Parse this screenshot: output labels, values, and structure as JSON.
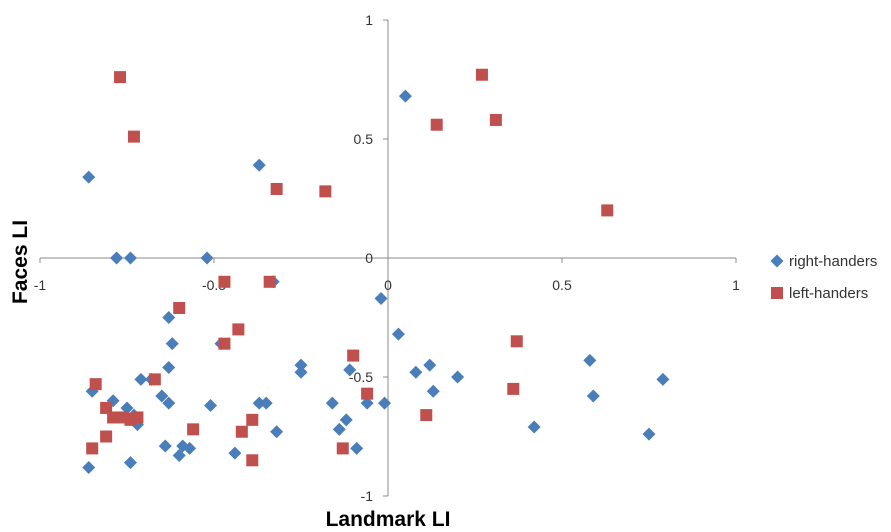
{
  "chart_data": {
    "type": "scatter",
    "xlabel": "Landmark LI",
    "ylabel": "Faces LI",
    "xlim": [
      -1,
      1
    ],
    "ylim": [
      -1,
      1
    ],
    "x_ticks": [
      {
        "value": -1,
        "label": "-1"
      },
      {
        "value": -0.5,
        "label": "-0.5"
      },
      {
        "value": 0,
        "label": "0"
      },
      {
        "value": 0.5,
        "label": "0.5"
      },
      {
        "value": 1,
        "label": "1"
      }
    ],
    "y_ticks": [
      {
        "value": 1,
        "label": "1"
      },
      {
        "value": 0.5,
        "label": "0.5"
      },
      {
        "value": 0,
        "label": "0"
      },
      {
        "value": -0.5,
        "label": "-0.5"
      },
      {
        "value": -1,
        "label": "-1"
      }
    ],
    "grid": false,
    "legend_position": "right",
    "series": [
      {
        "name": "right-handers",
        "marker": "diamond",
        "color": "#4a7ebb",
        "points": [
          [
            -0.86,
            0.34
          ],
          [
            -0.78,
            0.0
          ],
          [
            -0.74,
            0.0
          ],
          [
            -0.52,
            0.0
          ],
          [
            -0.37,
            0.39
          ],
          [
            0.05,
            0.68
          ],
          [
            -0.33,
            -0.1
          ],
          [
            -0.02,
            -0.17
          ],
          [
            0.03,
            -0.32
          ],
          [
            -0.63,
            -0.25
          ],
          [
            -0.62,
            -0.36
          ],
          [
            -0.48,
            -0.36
          ],
          [
            -0.25,
            -0.45
          ],
          [
            -0.25,
            -0.48
          ],
          [
            -0.63,
            -0.46
          ],
          [
            -0.71,
            -0.51
          ],
          [
            -0.68,
            -0.51
          ],
          [
            -0.11,
            -0.47
          ],
          [
            0.08,
            -0.48
          ],
          [
            0.12,
            -0.45
          ],
          [
            0.2,
            -0.5
          ],
          [
            0.13,
            -0.56
          ],
          [
            0.58,
            -0.43
          ],
          [
            0.79,
            -0.51
          ],
          [
            0.59,
            -0.58
          ],
          [
            -0.85,
            -0.56
          ],
          [
            -0.79,
            -0.6
          ],
          [
            -0.65,
            -0.58
          ],
          [
            -0.63,
            -0.61
          ],
          [
            -0.51,
            -0.62
          ],
          [
            -0.37,
            -0.61
          ],
          [
            -0.35,
            -0.61
          ],
          [
            -0.16,
            -0.61
          ],
          [
            -0.06,
            -0.61
          ],
          [
            -0.01,
            -0.61
          ],
          [
            -0.75,
            -0.63
          ],
          [
            -0.73,
            -0.66
          ],
          [
            -0.72,
            -0.7
          ],
          [
            -0.12,
            -0.68
          ],
          [
            -0.14,
            -0.72
          ],
          [
            -0.32,
            -0.73
          ],
          [
            -0.64,
            -0.79
          ],
          [
            -0.59,
            -0.79
          ],
          [
            -0.57,
            -0.8
          ],
          [
            -0.6,
            -0.83
          ],
          [
            -0.44,
            -0.82
          ],
          [
            -0.09,
            -0.8
          ],
          [
            0.42,
            -0.71
          ],
          [
            0.75,
            -0.74
          ],
          [
            -0.86,
            -0.88
          ],
          [
            -0.74,
            -0.86
          ]
        ]
      },
      {
        "name": "left-handers",
        "marker": "square",
        "color": "#c0504d",
        "points": [
          [
            -0.77,
            0.76
          ],
          [
            -0.73,
            0.51
          ],
          [
            0.27,
            0.77
          ],
          [
            0.14,
            0.56
          ],
          [
            0.31,
            0.58
          ],
          [
            0.63,
            0.2
          ],
          [
            -0.32,
            0.29
          ],
          [
            -0.18,
            0.28
          ],
          [
            -0.47,
            -0.1
          ],
          [
            -0.34,
            -0.1
          ],
          [
            -0.6,
            -0.21
          ],
          [
            -0.43,
            -0.3
          ],
          [
            -0.47,
            -0.36
          ],
          [
            -0.1,
            -0.41
          ],
          [
            0.37,
            -0.35
          ],
          [
            -0.67,
            -0.51
          ],
          [
            -0.84,
            -0.53
          ],
          [
            0.36,
            -0.55
          ],
          [
            -0.06,
            -0.57
          ],
          [
            -0.81,
            -0.63
          ],
          [
            -0.79,
            -0.67
          ],
          [
            -0.74,
            -0.68
          ],
          [
            -0.72,
            -0.67
          ],
          [
            -0.76,
            -0.67
          ],
          [
            0.11,
            -0.66
          ],
          [
            -0.39,
            -0.68
          ],
          [
            -0.56,
            -0.72
          ],
          [
            -0.42,
            -0.73
          ],
          [
            -0.81,
            -0.75
          ],
          [
            -0.85,
            -0.8
          ],
          [
            -0.13,
            -0.8
          ],
          [
            -0.39,
            -0.85
          ]
        ]
      }
    ]
  }
}
